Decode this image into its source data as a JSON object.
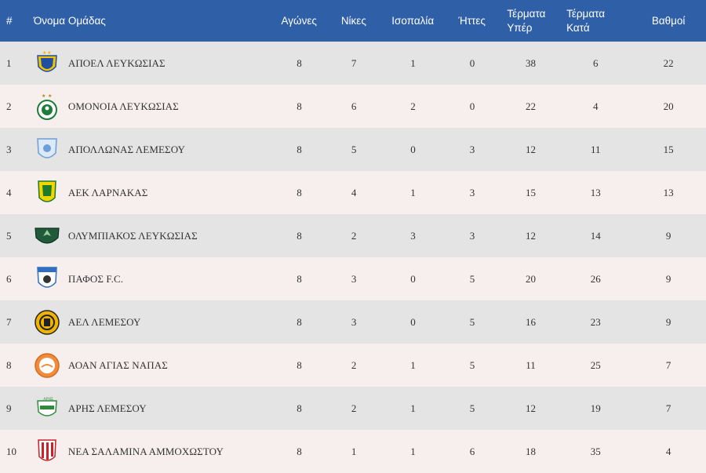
{
  "header": {
    "pos": "#",
    "team": "Όνομα Ομάδας",
    "played": "Αγώνες",
    "wins": "Νίκες",
    "draws": "Ισοπαλία",
    "losses": "Ήττες",
    "gf_line1": "Τέρματα",
    "gf_line2": "Υπέρ",
    "ga_line1": "Τέρματα",
    "ga_line2": "Κατά",
    "points": "Βαθμοί"
  },
  "rows": [
    {
      "pos": "1",
      "team": "ΑΠΟΕΛ ΛΕΥΚΩΣΙΑΣ",
      "played": "8",
      "wins": "7",
      "draws": "1",
      "losses": "0",
      "gf": "38",
      "ga": "6",
      "points": "22",
      "logo": "apoel-crest-icon"
    },
    {
      "pos": "2",
      "team": "ΟΜΟΝΟΙΑ ΛΕΥΚΩΣΙΑΣ",
      "played": "8",
      "wins": "6",
      "draws": "2",
      "losses": "0",
      "gf": "22",
      "ga": "4",
      "points": "20",
      "logo": "omonoia-crest-icon"
    },
    {
      "pos": "3",
      "team": "ΑΠΟΛΛΩΝΑΣ ΛΕΜΕΣΟΥ",
      "played": "8",
      "wins": "5",
      "draws": "0",
      "losses": "3",
      "gf": "12",
      "ga": "11",
      "points": "15",
      "logo": "apollon-crest-icon"
    },
    {
      "pos": "4",
      "team": "ΑΕΚ ΛΑΡΝΑΚΑΣ",
      "played": "8",
      "wins": "4",
      "draws": "1",
      "losses": "3",
      "gf": "15",
      "ga": "13",
      "points": "13",
      "logo": "aek-crest-icon"
    },
    {
      "pos": "5",
      "team": "ΟΛΥΜΠΙΑΚΟΣ ΛΕΥΚΩΣΙΑΣ",
      "played": "8",
      "wins": "2",
      "draws": "3",
      "losses": "3",
      "gf": "12",
      "ga": "14",
      "points": "9",
      "logo": "olympiakos-crest-icon"
    },
    {
      "pos": "6",
      "team": "ΠΑΦΟΣ F.C.",
      "played": "8",
      "wins": "3",
      "draws": "0",
      "losses": "5",
      "gf": "20",
      "ga": "26",
      "points": "9",
      "logo": "pafos-crest-icon"
    },
    {
      "pos": "7",
      "team": "ΑΕΛ ΛΕΜΕΣΟΥ",
      "played": "8",
      "wins": "3",
      "draws": "0",
      "losses": "5",
      "gf": "16",
      "ga": "23",
      "points": "9",
      "logo": "ael-crest-icon"
    },
    {
      "pos": "8",
      "team": "ΑΟΑΝ ΑΓΙΑΣ ΝΑΠΑΣ",
      "played": "8",
      "wins": "2",
      "draws": "1",
      "losses": "5",
      "gf": "11",
      "ga": "25",
      "points": "7",
      "logo": "aoan-crest-icon"
    },
    {
      "pos": "9",
      "team": "ΑΡΗΣ ΛΕΜΕΣΟΥ",
      "played": "8",
      "wins": "2",
      "draws": "1",
      "losses": "5",
      "gf": "12",
      "ga": "19",
      "points": "7",
      "logo": "aris-crest-icon"
    },
    {
      "pos": "10",
      "team": "ΝΕΑ ΣΑΛΑΜΙΝΑ ΑΜΜΟΧΩΣΤΟΥ",
      "played": "8",
      "wins": "1",
      "draws": "1",
      "losses": "6",
      "gf": "18",
      "ga": "35",
      "points": "4",
      "logo": "nea-salamina-crest-icon"
    }
  ],
  "colors": {
    "header_bg": "#2f5fa6",
    "row_odd": "#e4e4e4",
    "row_even": "#f7eeee"
  }
}
